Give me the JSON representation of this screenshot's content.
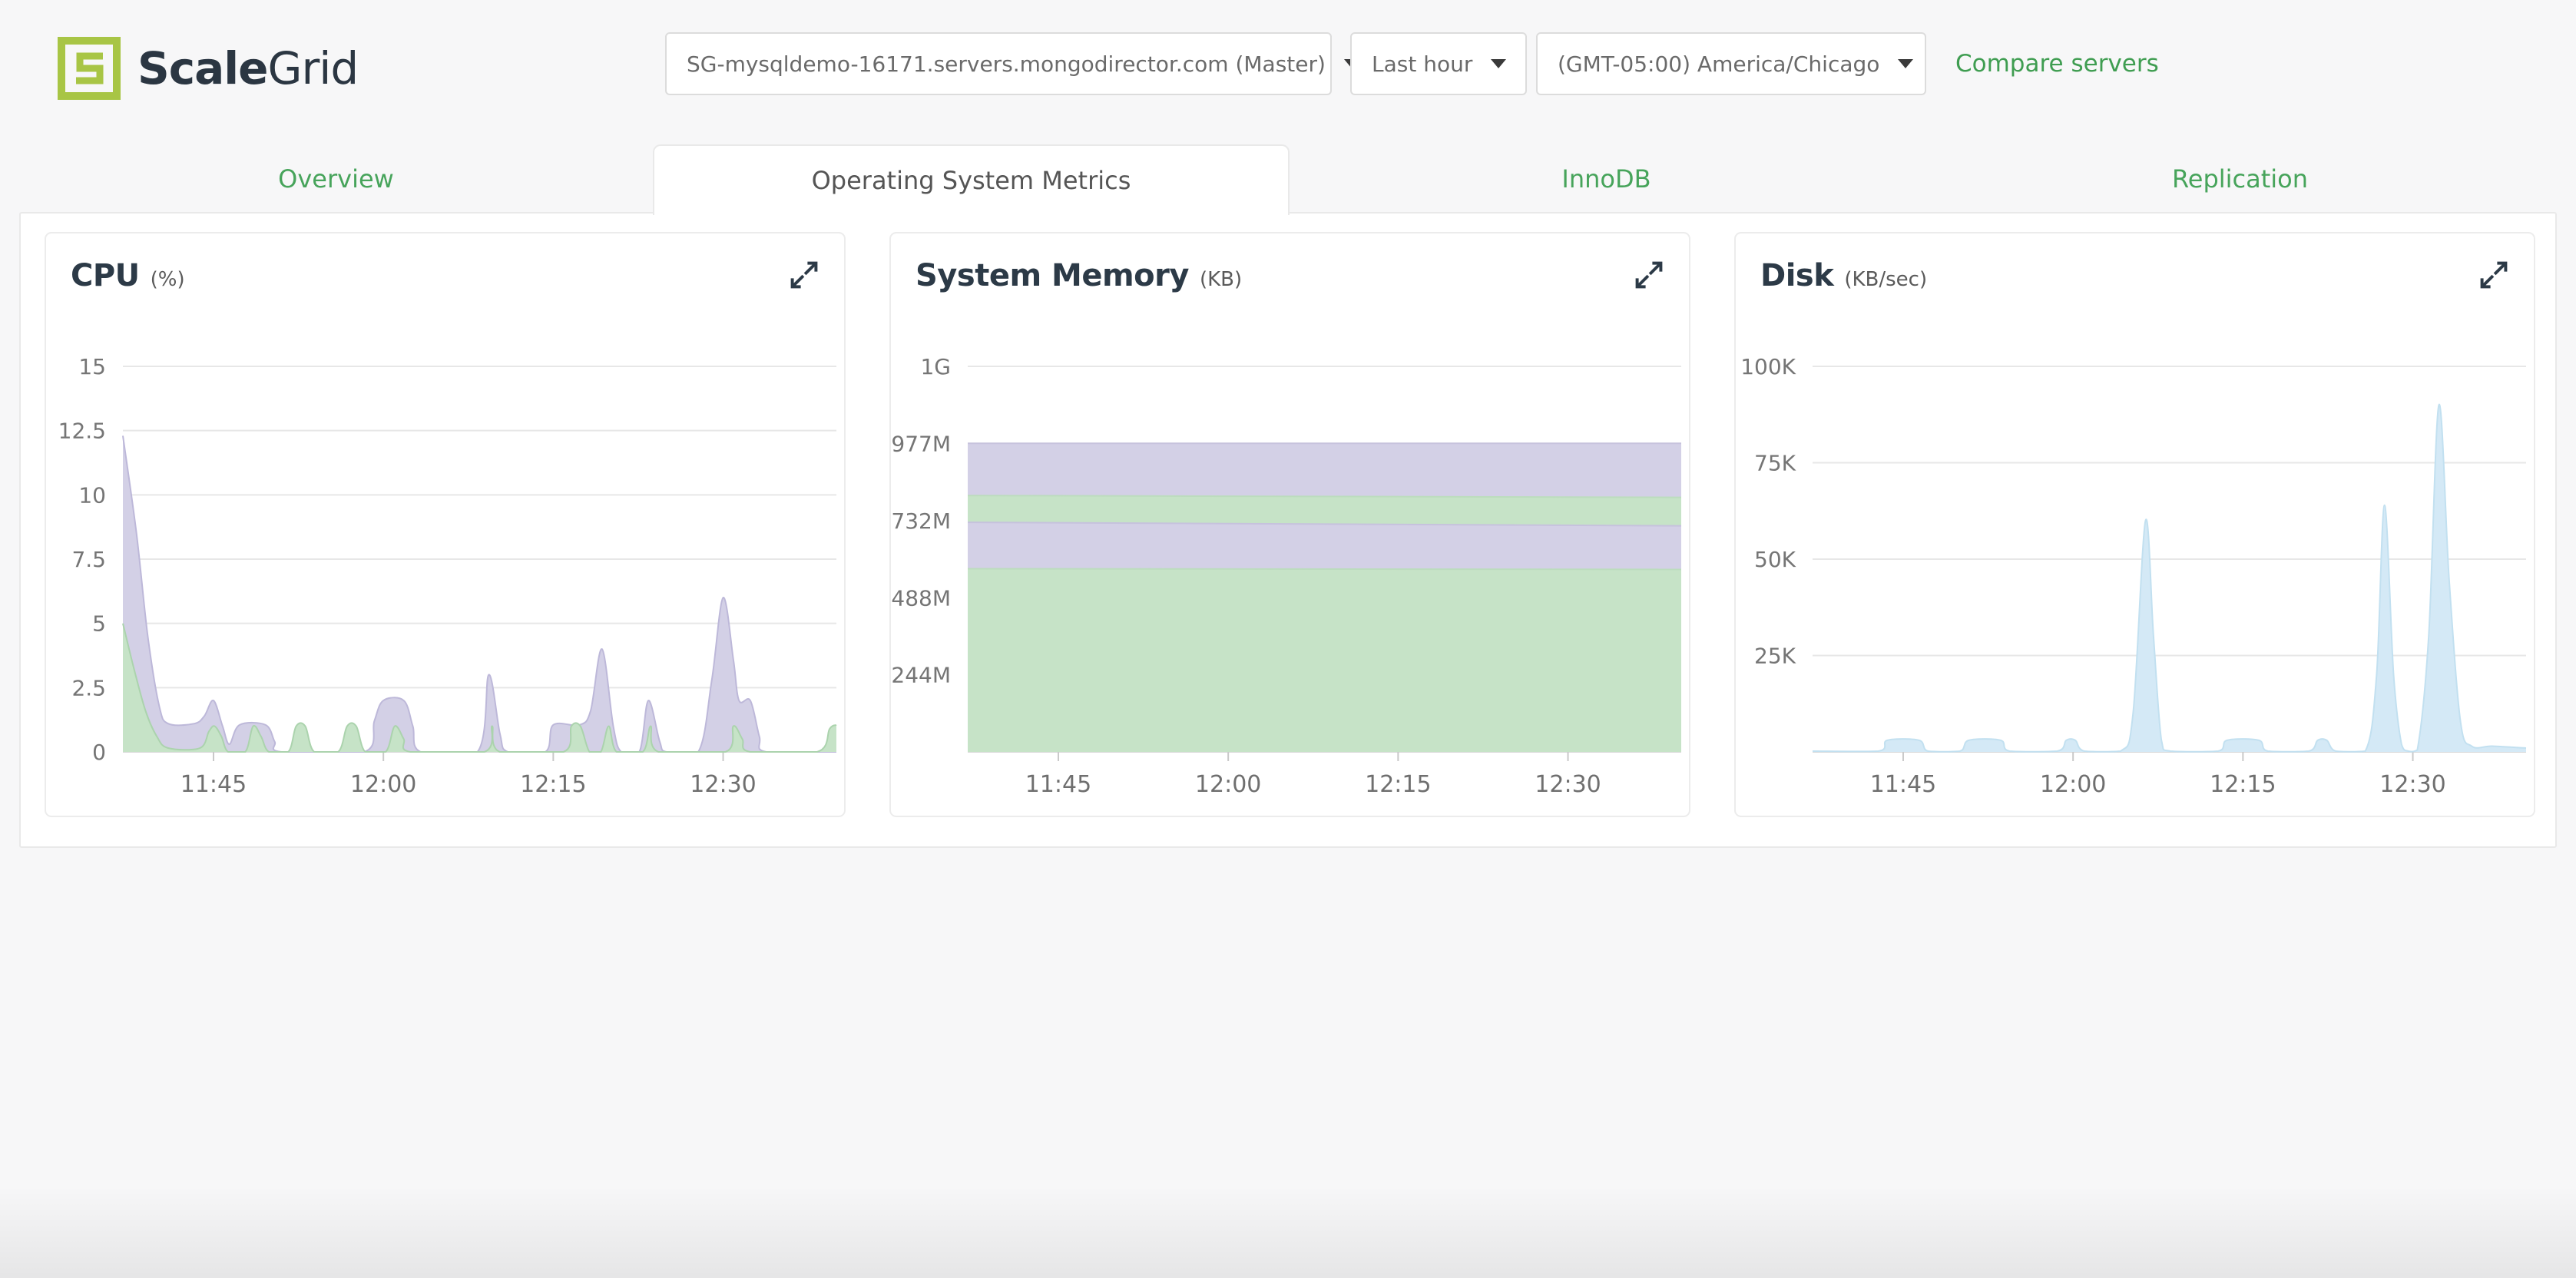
{
  "header": {
    "logo": {
      "brand_bold": "Scale",
      "brand_light": "Grid"
    },
    "server_select": {
      "value": "SG-mysqldemo-16171.servers.mongodirector.com (Master)"
    },
    "time_range_select": {
      "value": "Last hour"
    },
    "timezone_select": {
      "value": "(GMT-05:00) America/Chicago"
    },
    "compare_link": "Compare servers"
  },
  "tabs": [
    {
      "label": "Overview",
      "active": false
    },
    {
      "label": "Operating System Metrics",
      "active": true
    },
    {
      "label": "InnoDB",
      "active": false
    },
    {
      "label": "Replication",
      "active": false
    }
  ],
  "colors": {
    "accent_green": "#47a45b",
    "logo_lime": "#a8c545",
    "dark_text": "#2b3642",
    "fill_green": "#c6e3c7",
    "fill_purple": "#d3d0e6",
    "fill_blue": "#d4e9f6",
    "gridline": "#e7e7e7",
    "baseline": "#d8d8d8",
    "axis_text": "#757575"
  },
  "chart_data": [
    {
      "type": "area",
      "draw": "overlay",
      "title": "CPU",
      "unit": "(%)",
      "xlabel_times": [
        "11:45",
        "12:00",
        "12:15",
        "12:30"
      ],
      "x_range": [
        0,
        63
      ],
      "x_ticks": [
        {
          "t": 8,
          "label": "11:45"
        },
        {
          "t": 23,
          "label": "12:00"
        },
        {
          "t": 38,
          "label": "12:15"
        },
        {
          "t": 53,
          "label": "12:30"
        }
      ],
      "y_max": 15,
      "y_ticks": [
        {
          "v": 0,
          "label": "0"
        },
        {
          "v": 2.5,
          "label": "2.5"
        },
        {
          "v": 5,
          "label": "5"
        },
        {
          "v": 7.5,
          "label": "7.5"
        },
        {
          "v": 10,
          "label": "10"
        },
        {
          "v": 12.5,
          "label": "12.5"
        },
        {
          "v": 15,
          "label": "15"
        }
      ],
      "series": [
        {
          "name": "cpu-system",
          "fill": "#d3d0e6",
          "edge": "#bdb8d9",
          "points": [
            [
              0,
              12.3
            ],
            [
              1.2,
              8.5
            ],
            [
              2.2,
              4.5
            ],
            [
              3.2,
              1.8
            ],
            [
              4,
              1.1
            ],
            [
              6.3,
              1.1
            ],
            [
              7.2,
              1.4
            ],
            [
              8,
              2
            ],
            [
              8.8,
              1
            ],
            [
              9.4,
              0.3
            ],
            [
              10.3,
              1.05
            ],
            [
              12.6,
              1.05
            ],
            [
              13.4,
              0.4
            ],
            [
              14,
              0
            ],
            [
              21.3,
              0
            ],
            [
              22.2,
              1.2
            ],
            [
              23,
              2
            ],
            [
              24.8,
              2
            ],
            [
              25.6,
              1
            ],
            [
              26.3,
              0
            ],
            [
              31.3,
              0
            ],
            [
              32.3,
              3
            ],
            [
              33.3,
              0.7
            ],
            [
              34,
              0
            ],
            [
              37.3,
              0
            ],
            [
              38,
              1.05
            ],
            [
              40.3,
              1.05
            ],
            [
              41.3,
              1.6
            ],
            [
              42.3,
              4
            ],
            [
              43.3,
              1
            ],
            [
              44,
              0
            ],
            [
              45.6,
              0
            ],
            [
              46.4,
              2
            ],
            [
              47.4,
              0.4
            ],
            [
              48,
              0
            ],
            [
              50.8,
              0
            ],
            [
              52,
              2.8
            ],
            [
              53,
              6
            ],
            [
              53.9,
              3.6
            ],
            [
              54.4,
              2
            ],
            [
              55.4,
              2
            ],
            [
              56.2,
              0.6
            ],
            [
              56.8,
              0
            ],
            [
              63,
              0
            ]
          ]
        },
        {
          "name": "cpu-user",
          "fill": "#c6e3c7",
          "edge": "#abd3ad",
          "points": [
            [
              0,
              5
            ],
            [
              1,
              3.2
            ],
            [
              2,
              1.6
            ],
            [
              3,
              0.6
            ],
            [
              4,
              0.15
            ],
            [
              6.8,
              0.15
            ],
            [
              7.6,
              0.8
            ],
            [
              8.1,
              1
            ],
            [
              8.7,
              0.6
            ],
            [
              9.3,
              0
            ],
            [
              10.8,
              0
            ],
            [
              11.5,
              1
            ],
            [
              12.2,
              0.6
            ],
            [
              12.9,
              0
            ],
            [
              14.6,
              0
            ],
            [
              15.3,
              1
            ],
            [
              16.1,
              1
            ],
            [
              16.9,
              0
            ],
            [
              19,
              0
            ],
            [
              19.8,
              1
            ],
            [
              20.6,
              1
            ],
            [
              21.4,
              0
            ],
            [
              23.2,
              0
            ],
            [
              24,
              1
            ],
            [
              24.8,
              0.5
            ],
            [
              25.4,
              0
            ],
            [
              31.9,
              0
            ],
            [
              32.6,
              1
            ],
            [
              33.3,
              0
            ],
            [
              38.9,
              0
            ],
            [
              39.6,
              1
            ],
            [
              40.4,
              1
            ],
            [
              41.2,
              0
            ],
            [
              42.2,
              0
            ],
            [
              42.9,
              1
            ],
            [
              43.6,
              0
            ],
            [
              45.9,
              0
            ],
            [
              46.6,
              1
            ],
            [
              47.3,
              0
            ],
            [
              53.2,
              0
            ],
            [
              53.9,
              1
            ],
            [
              54.7,
              0.5
            ],
            [
              55.4,
              0
            ],
            [
              61.3,
              0
            ],
            [
              62.4,
              0.9
            ],
            [
              63,
              1.05
            ]
          ]
        }
      ]
    },
    {
      "type": "area",
      "draw": "bands",
      "title": "System Memory",
      "unit": "(KB)",
      "xlabel_times": [
        "11:45",
        "12:00",
        "12:15",
        "12:30"
      ],
      "x_range": [
        0,
        63
      ],
      "x_ticks": [
        {
          "t": 8,
          "label": "11:45"
        },
        {
          "t": 23,
          "label": "12:00"
        },
        {
          "t": 38,
          "label": "12:15"
        },
        {
          "t": 53,
          "label": "12:30"
        }
      ],
      "y_max": 1221,
      "y_ticks": [
        {
          "v": 244,
          "label": "244M"
        },
        {
          "v": 488,
          "label": "488M"
        },
        {
          "v": 732,
          "label": "732M"
        },
        {
          "v": 977,
          "label": "977M"
        },
        {
          "v": 1221,
          "label": "1G"
        }
      ],
      "series": [
        {
          "name": "mem-band-top-purple",
          "fill": "#d3d0e6",
          "edge": "#c6c2dd",
          "points": [
            [
              0,
              977
            ],
            [
              63,
              977
            ]
          ]
        },
        {
          "name": "mem-band-upper-green",
          "fill": "#c6e3c7",
          "edge": "#bcdcbe",
          "points": [
            [
              0,
              812
            ],
            [
              63,
              806
            ]
          ]
        },
        {
          "name": "mem-band-mid-purple",
          "fill": "#d3d0e6",
          "edge": "#c6c2dd",
          "points": [
            [
              0,
              727
            ],
            [
              63,
              716
            ]
          ]
        },
        {
          "name": "mem-band-base-green",
          "fill": "#c6e3c7",
          "edge": "#bcdcbe",
          "points": [
            [
              0,
              580
            ],
            [
              63,
              578
            ]
          ]
        }
      ]
    },
    {
      "type": "area",
      "draw": "overlay",
      "title": "Disk",
      "unit": "(KB/sec)",
      "xlabel_times": [
        "11:45",
        "12:00",
        "12:15",
        "12:30"
      ],
      "x_range": [
        0,
        63
      ],
      "x_ticks": [
        {
          "t": 8,
          "label": "11:45"
        },
        {
          "t": 23,
          "label": "12:00"
        },
        {
          "t": 38,
          "label": "12:15"
        },
        {
          "t": 53,
          "label": "12:30"
        }
      ],
      "y_max": 100,
      "y_ticks": [
        {
          "v": 25,
          "label": "25K"
        },
        {
          "v": 50,
          "label": "50K"
        },
        {
          "v": 75,
          "label": "75K"
        },
        {
          "v": 100,
          "label": "100K"
        }
      ],
      "series": [
        {
          "name": "disk-io",
          "fill": "#d4e9f6",
          "edge": "#c2e0f0",
          "points": [
            [
              0,
              0.2
            ],
            [
              5.8,
              0.2
            ],
            [
              6.6,
              3
            ],
            [
              9.4,
              3
            ],
            [
              10.2,
              0.2
            ],
            [
              13,
              0.2
            ],
            [
              13.8,
              3
            ],
            [
              16.6,
              3
            ],
            [
              17.4,
              0.2
            ],
            [
              21.6,
              0.2
            ],
            [
              22.4,
              3
            ],
            [
              23.2,
              3
            ],
            [
              24,
              0.2
            ],
            [
              27.2,
              0.2
            ],
            [
              28.3,
              10
            ],
            [
              29.4,
              60
            ],
            [
              30.1,
              30
            ],
            [
              30.8,
              3
            ],
            [
              31.6,
              0.2
            ],
            [
              35.8,
              0.2
            ],
            [
              36.6,
              3
            ],
            [
              39.4,
              3
            ],
            [
              40.2,
              0.2
            ],
            [
              43.8,
              0.2
            ],
            [
              44.6,
              3
            ],
            [
              45.4,
              3
            ],
            [
              46.2,
              0.2
            ],
            [
              48.8,
              0.2
            ],
            [
              49.8,
              20
            ],
            [
              50.5,
              64
            ],
            [
              51.3,
              20
            ],
            [
              52,
              2
            ],
            [
              52.6,
              0.2
            ],
            [
              53.4,
              0.5
            ],
            [
              54.4,
              30
            ],
            [
              55.3,
              90
            ],
            [
              56.2,
              45
            ],
            [
              57.2,
              8
            ],
            [
              58.2,
              1.5
            ],
            [
              60,
              1.5
            ],
            [
              63,
              1
            ]
          ]
        }
      ]
    }
  ]
}
